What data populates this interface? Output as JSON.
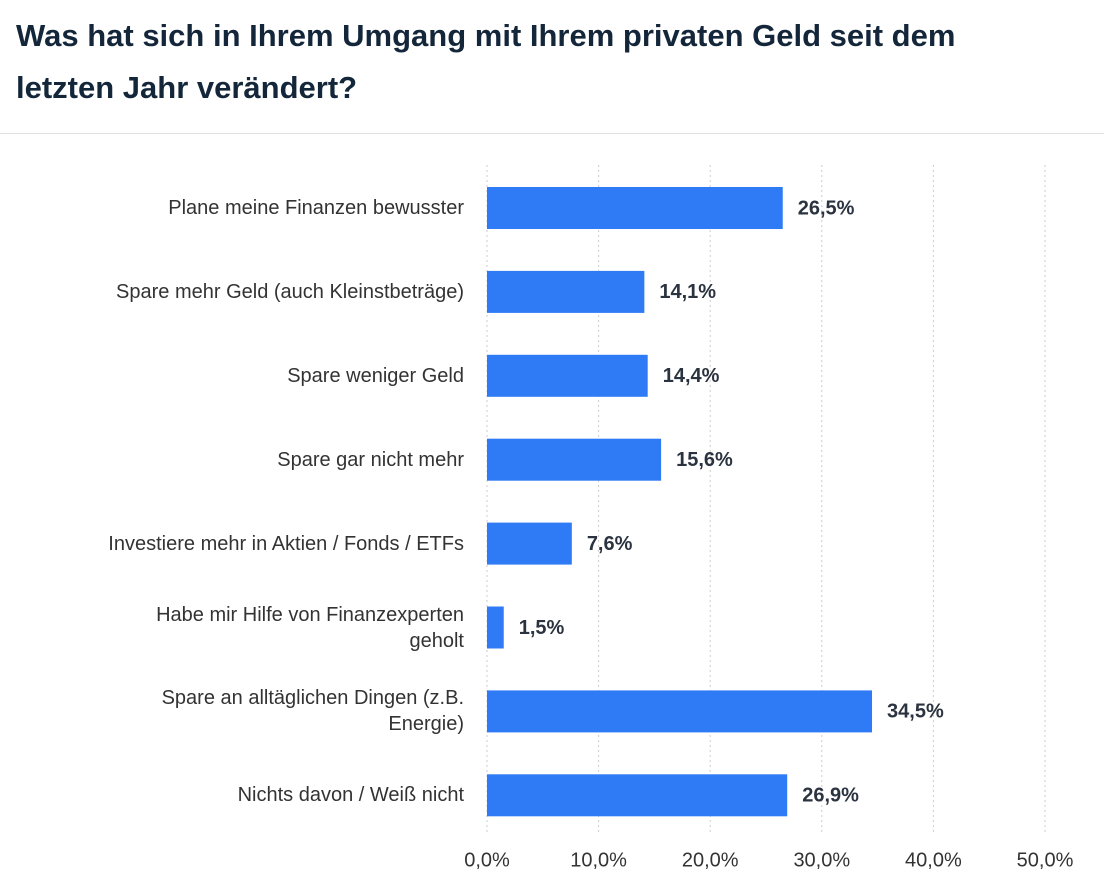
{
  "chart_data": {
    "type": "barh",
    "title": "Was hat sich in Ihrem Umgang mit Ihrem privaten Geld seit dem letzten Jahr verändert?",
    "categories": [
      "Plane meine Finanzen bewusster",
      "Spare mehr Geld (auch Kleinstbeträge)",
      "Spare weniger Geld",
      "Spare gar nicht mehr",
      "Investiere mehr in Aktien / Fonds / ETFs",
      "Habe mir Hilfe von Finanzexperten geholt",
      "Spare an alltäglichen Dingen (z.B. Energie)",
      "Nichts davon / Weiß nicht"
    ],
    "values": [
      26.5,
      14.1,
      14.4,
      15.6,
      7.6,
      1.5,
      34.5,
      26.9
    ],
    "value_labels": [
      "26,5%",
      "14,1%",
      "14,4%",
      "15,6%",
      "7,6%",
      "1,5%",
      "34,5%",
      "26,9%"
    ],
    "color": "#2f7bf5",
    "xlim": [
      0,
      50
    ],
    "xticks": [
      {
        "value": 0,
        "label": "0,0%"
      },
      {
        "value": 10,
        "label": "10,0%"
      },
      {
        "value": 20,
        "label": "20,0%"
      },
      {
        "value": 30,
        "label": "30,0%"
      },
      {
        "value": 40,
        "label": "40,0%"
      },
      {
        "value": 50,
        "label": "50,0%"
      }
    ],
    "grid": true
  }
}
